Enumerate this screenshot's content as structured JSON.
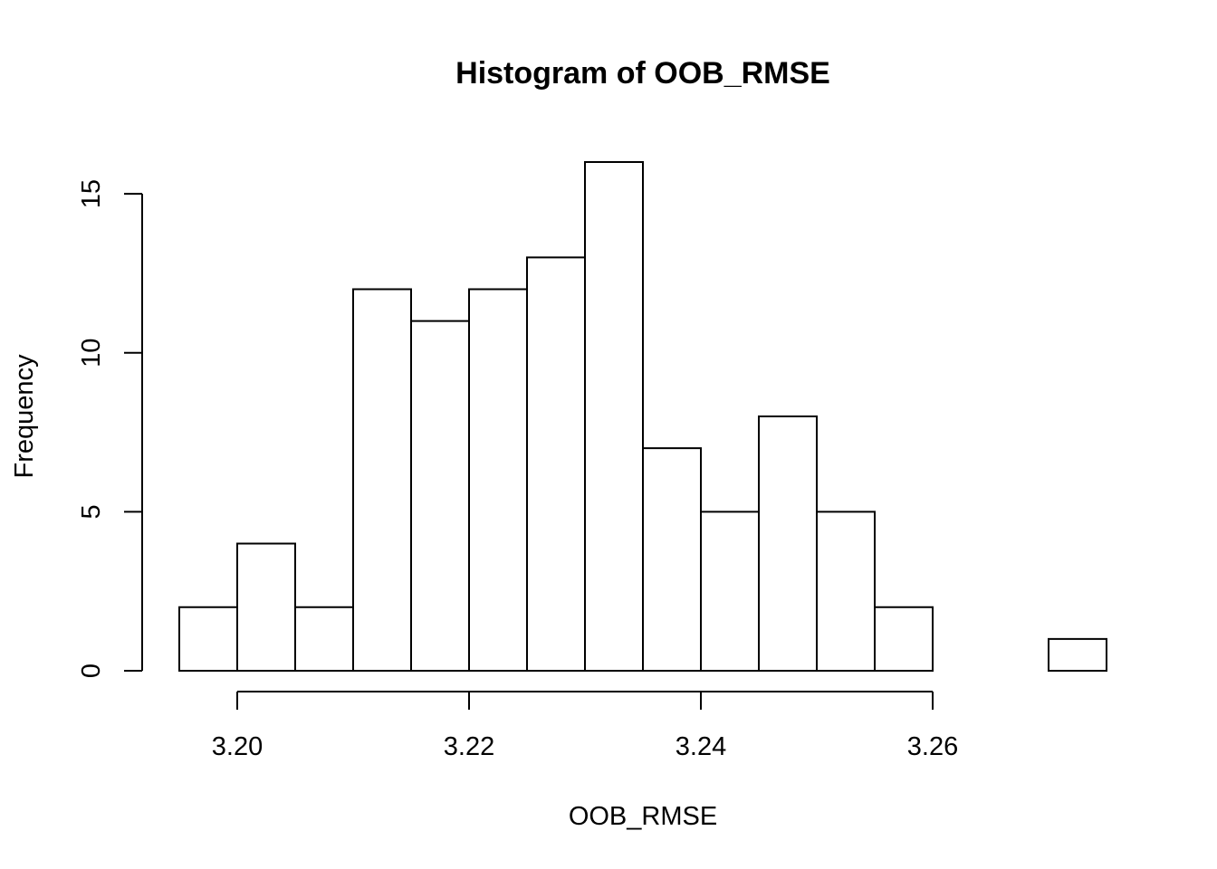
{
  "chart_data": {
    "type": "bar",
    "title": "Histogram of OOB_RMSE",
    "xlabel": "OOB_RMSE",
    "ylabel": "Frequency",
    "bins": [
      {
        "start": 3.195,
        "end": 3.2,
        "count": 2
      },
      {
        "start": 3.2,
        "end": 3.205,
        "count": 4
      },
      {
        "start": 3.205,
        "end": 3.21,
        "count": 2
      },
      {
        "start": 3.21,
        "end": 3.215,
        "count": 12
      },
      {
        "start": 3.215,
        "end": 3.22,
        "count": 11
      },
      {
        "start": 3.22,
        "end": 3.225,
        "count": 12
      },
      {
        "start": 3.225,
        "end": 3.23,
        "count": 13
      },
      {
        "start": 3.23,
        "end": 3.235,
        "count": 16
      },
      {
        "start": 3.235,
        "end": 3.24,
        "count": 7
      },
      {
        "start": 3.24,
        "end": 3.245,
        "count": 5
      },
      {
        "start": 3.245,
        "end": 3.25,
        "count": 8
      },
      {
        "start": 3.25,
        "end": 3.255,
        "count": 5
      },
      {
        "start": 3.255,
        "end": 3.26,
        "count": 2
      },
      {
        "start": 3.26,
        "end": 3.265,
        "count": 0
      },
      {
        "start": 3.265,
        "end": 3.27,
        "count": 0
      },
      {
        "start": 3.27,
        "end": 3.275,
        "count": 1
      }
    ],
    "xlim": [
      3.195,
      3.275
    ],
    "ylim": [
      0,
      16
    ],
    "x_ticks": [
      3.2,
      3.22,
      3.24,
      3.26
    ],
    "x_tick_labels": [
      "3.20",
      "3.22",
      "3.24",
      "3.26"
    ],
    "y_ticks": [
      0,
      5,
      10,
      15
    ],
    "y_tick_labels": [
      "0",
      "5",
      "10",
      "15"
    ],
    "bar_fill": "#ffffff",
    "bar_stroke": "#000000",
    "grid": false,
    "legend": false
  }
}
